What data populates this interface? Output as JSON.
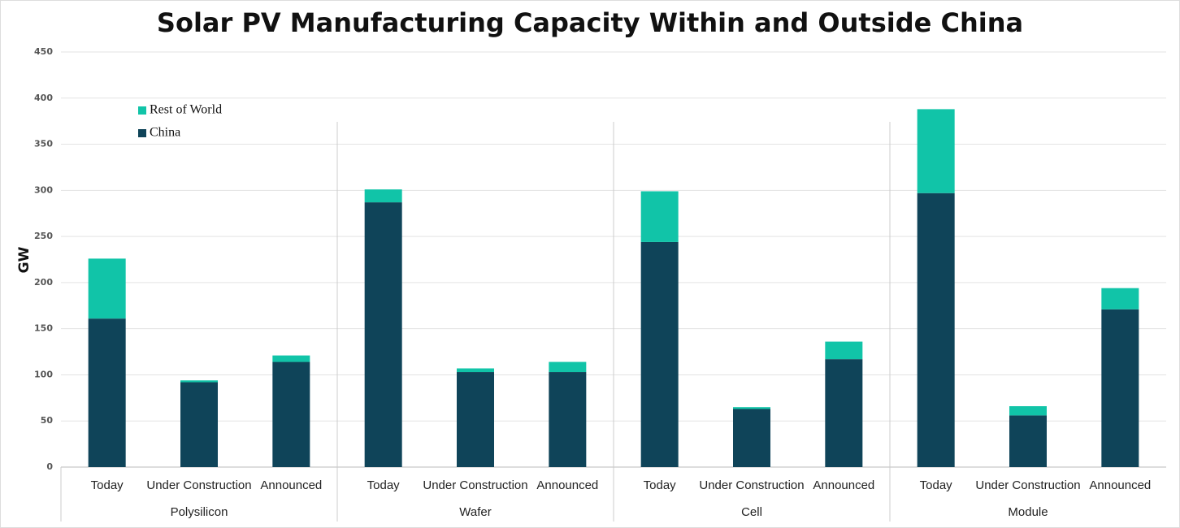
{
  "chart_data": {
    "type": "stacked_bar",
    "title": "Solar PV Manufacturing Capacity Within and Outside China",
    "y_label": "GW",
    "groups": [
      {
        "name": "Polysilicon",
        "categories": [
          "Today",
          "Under Construction",
          "Announced"
        ]
      },
      {
        "name": "Wafer",
        "categories": [
          "Today",
          "Under Construction",
          "Announced"
        ]
      },
      {
        "name": "Cell",
        "categories": [
          "Today",
          "Under Construction",
          "Announced"
        ]
      },
      {
        "name": "Module",
        "categories": [
          "Today",
          "Under Construction",
          "Announced"
        ]
      }
    ],
    "series": [
      {
        "name": "China",
        "color": "#0f4459",
        "values": [
          [
            161,
            92,
            114
          ],
          [
            287,
            103,
            103
          ],
          [
            244,
            63,
            117
          ],
          [
            297,
            56,
            171
          ]
        ]
      },
      {
        "name": "Rest of World",
        "color": "#11c4a8",
        "values": [
          [
            65,
            2,
            7
          ],
          [
            14,
            4,
            11
          ],
          [
            55,
            2,
            19
          ],
          [
            91,
            10,
            23
          ]
        ]
      }
    ],
    "ylim": [
      0,
      450
    ],
    "yticks": [
      0,
      50,
      100,
      150,
      200,
      250,
      300,
      350,
      400,
      450
    ],
    "grid": true,
    "legend": "upper left"
  }
}
